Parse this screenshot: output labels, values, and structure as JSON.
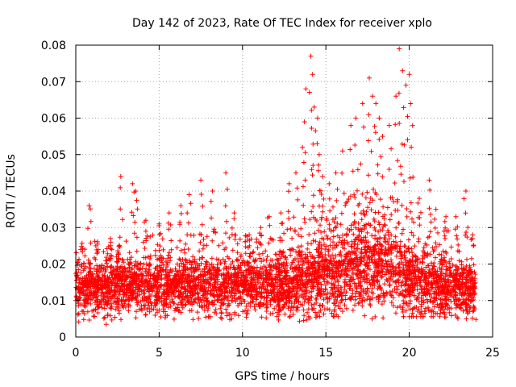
{
  "chart_data": {
    "type": "scatter",
    "title": "Day 142 of 2023, Rate Of TEC Index for receiver xplo",
    "xlabel": "GPS time / hours",
    "ylabel": "ROTI / TECUs",
    "xlim": [
      0,
      25
    ],
    "ylim": [
      0,
      0.08
    ],
    "x_ticks": [
      "0",
      "5",
      "10",
      "15",
      "20",
      "25"
    ],
    "y_ticks": [
      "0",
      "0.01",
      "0.02",
      "0.03",
      "0.04",
      "0.05",
      "0.06",
      "0.07",
      "0.08"
    ],
    "grid": true,
    "marker": "+",
    "color": "#ff0000",
    "series": [
      {
        "name": "ROTI",
        "x": [
          0.3,
          0.8,
          1.2,
          2.1,
          2.7,
          3.4,
          3.6,
          4.2,
          5.0,
          5.6,
          6.3,
          6.8,
          7.5,
          8.2,
          9.0,
          9.5,
          10.4,
          11.1,
          11.6,
          12.3,
          12.8,
          13.2,
          13.6,
          13.8,
          14.1,
          14.2,
          14.3,
          14.5,
          14.6,
          14.8,
          15.2,
          15.6,
          16.0,
          16.5,
          16.8,
          17.2,
          17.6,
          17.8,
          18.0,
          18.2,
          18.4,
          18.8,
          19.2,
          19.4,
          19.6,
          19.8,
          20.0,
          20.2,
          20.6,
          21.2,
          21.6,
          22.2,
          22.8,
          23.4,
          23.8
        ],
        "y": [
          0.024,
          0.036,
          0.025,
          0.026,
          0.044,
          0.042,
          0.04,
          0.032,
          0.031,
          0.034,
          0.036,
          0.039,
          0.043,
          0.04,
          0.045,
          0.034,
          0.028,
          0.03,
          0.033,
          0.034,
          0.042,
          0.045,
          0.052,
          0.068,
          0.077,
          0.072,
          0.063,
          0.06,
          0.05,
          0.044,
          0.042,
          0.045,
          0.051,
          0.058,
          0.06,
          0.064,
          0.071,
          0.066,
          0.064,
          0.06,
          0.055,
          0.058,
          0.066,
          0.079,
          0.073,
          0.069,
          0.072,
          0.058,
          0.038,
          0.043,
          0.035,
          0.033,
          0.033,
          0.04,
          0.028
        ]
      }
    ],
    "density_band": {
      "description": "dense cloud of ROTI samples",
      "x_range": [
        0,
        24
      ],
      "lower": [
        0.005,
        0.006,
        0.004,
        0.006,
        0.007,
        0.007,
        0.006,
        0.006,
        0.007,
        0.006,
        0.006,
        0.007,
        0.006,
        0.005,
        0.006,
        0.007,
        0.007,
        0.007,
        0.006,
        0.007,
        0.007,
        0.007,
        0.007,
        0.006,
        0.006
      ],
      "upper": [
        0.022,
        0.021,
        0.023,
        0.023,
        0.024,
        0.025,
        0.024,
        0.024,
        0.025,
        0.024,
        0.024,
        0.024,
        0.024,
        0.026,
        0.029,
        0.031,
        0.032,
        0.034,
        0.035,
        0.034,
        0.03,
        0.028,
        0.027,
        0.025,
        0.024
      ],
      "center": [
        0.013,
        0.013,
        0.014,
        0.014,
        0.014,
        0.014,
        0.014,
        0.014,
        0.014,
        0.014,
        0.014,
        0.014,
        0.014,
        0.015,
        0.016,
        0.017,
        0.018,
        0.019,
        0.02,
        0.019,
        0.016,
        0.015,
        0.014,
        0.014,
        0.014
      ]
    }
  }
}
